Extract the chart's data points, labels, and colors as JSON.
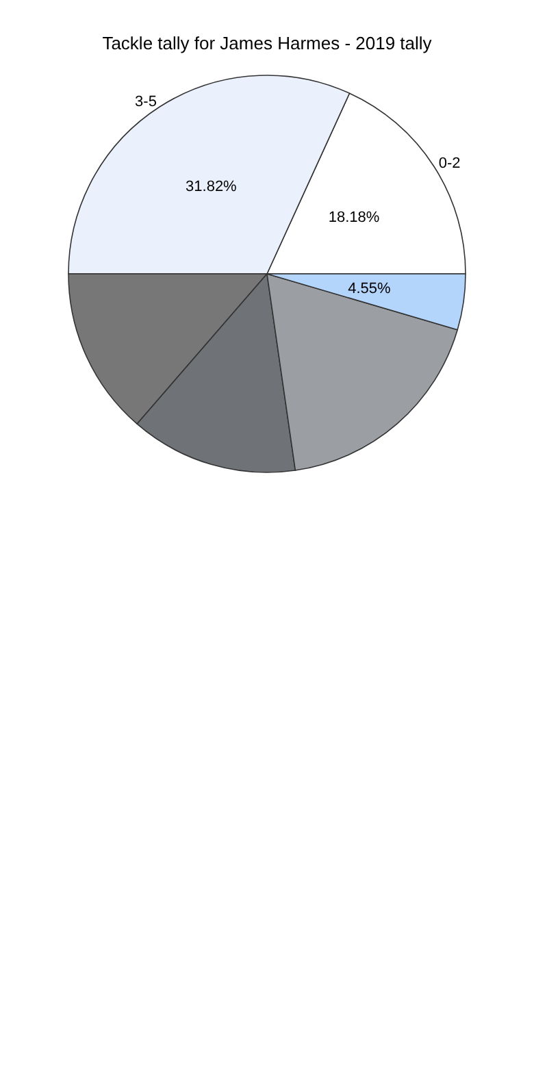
{
  "chart_data": {
    "type": "pie",
    "title": "Tackle tally for James Harmes - 2019 tally",
    "categories": [
      "0-2",
      "3-5",
      null,
      null,
      null,
      null
    ],
    "values": [
      18.18,
      31.82,
      13.64,
      13.64,
      18.17,
      4.55
    ],
    "value_labels": [
      "18.18%",
      "31.82%",
      null,
      null,
      null,
      "4.55%"
    ],
    "colors": [
      "#ffffff",
      "#eaf1fd",
      "#777777",
      "#6f7276",
      "#9b9ea2",
      "#b3d4fb"
    ],
    "legend": false
  }
}
